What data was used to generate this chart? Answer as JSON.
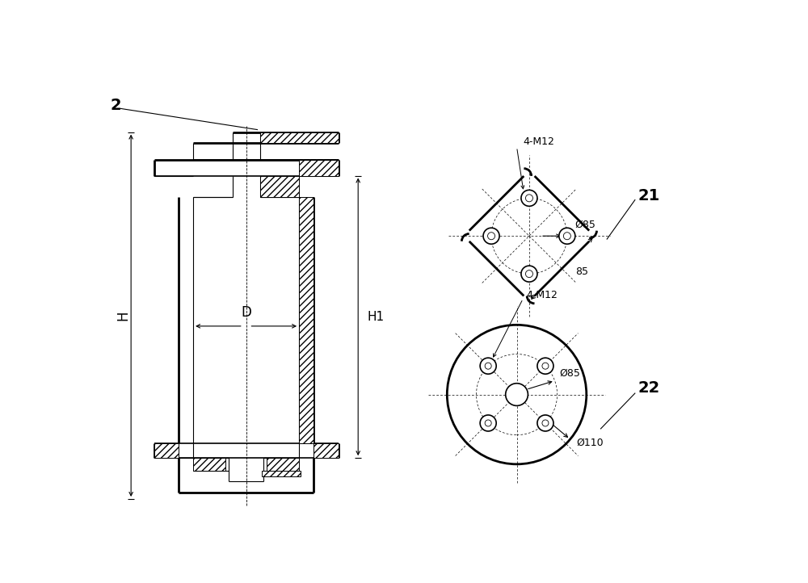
{
  "bg_color": "#ffffff",
  "line_color": "#000000",
  "label_2": "2",
  "label_21": "21",
  "label_22": "22",
  "label_H": "H",
  "label_H1": "H1",
  "label_D": "D",
  "label_4M12": "4-M12",
  "label_85_dia": "Ø85",
  "label_85": "85",
  "label_110_dia": "Ø110"
}
